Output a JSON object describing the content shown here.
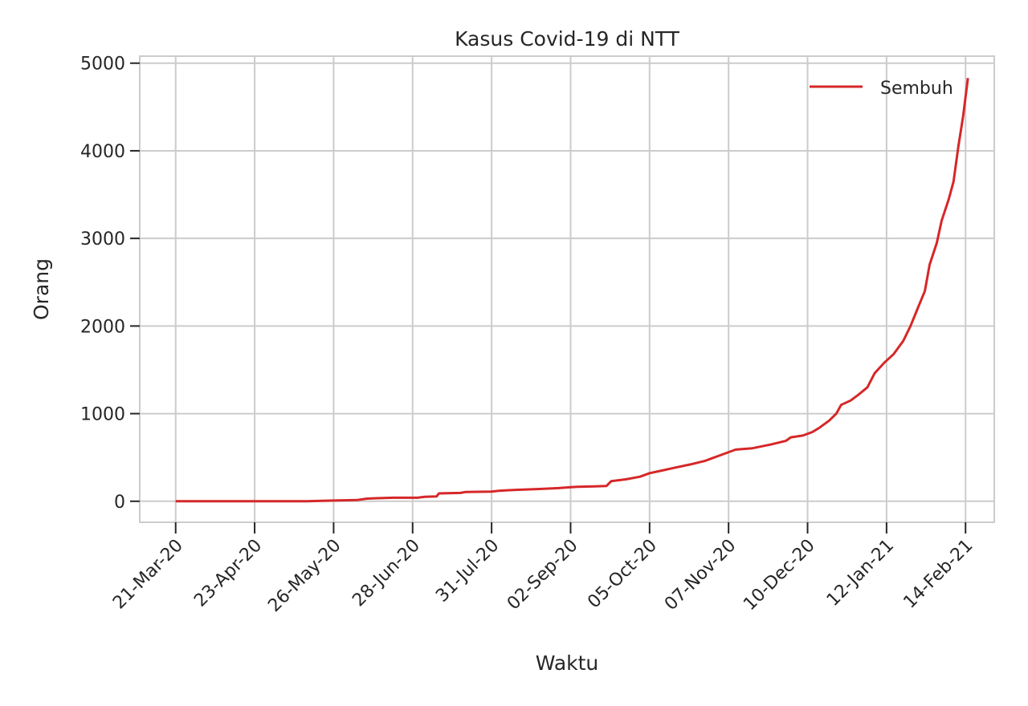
{
  "chart_data": {
    "type": "line",
    "title": "Kasus Covid-19 di NTT",
    "xlabel": "Waktu",
    "ylabel": "Orang",
    "x_type": "date",
    "xlim": [
      "2020-03-06",
      "2021-02-26"
    ],
    "ylim": [
      -240,
      5080
    ],
    "grid": true,
    "legend_position": "top-right",
    "x_ticks": [
      "21-Mar-20",
      "23-Apr-20",
      "26-May-20",
      "28-Jun-20",
      "31-Jul-20",
      "02-Sep-20",
      "05-Oct-20",
      "07-Nov-20",
      "10-Dec-20",
      "12-Jan-21",
      "14-Feb-21"
    ],
    "y_ticks": [
      0,
      1000,
      2000,
      3000,
      4000,
      5000
    ],
    "series": [
      {
        "name": "Sembuh",
        "color": "#d62728",
        "points": [
          [
            "2020-03-21",
            0
          ],
          [
            "2020-04-23",
            0
          ],
          [
            "2020-05-15",
            0
          ],
          [
            "2020-05-21",
            5
          ],
          [
            "2020-05-26",
            8
          ],
          [
            "2020-06-05",
            15
          ],
          [
            "2020-06-09",
            30
          ],
          [
            "2020-06-13",
            35
          ],
          [
            "2020-06-20",
            40
          ],
          [
            "2020-06-30",
            40
          ],
          [
            "2020-07-03",
            50
          ],
          [
            "2020-07-08",
            55
          ],
          [
            "2020-07-09",
            90
          ],
          [
            "2020-07-18",
            95
          ],
          [
            "2020-07-20",
            105
          ],
          [
            "2020-07-31",
            110
          ],
          [
            "2020-08-03",
            120
          ],
          [
            "2020-08-10",
            130
          ],
          [
            "2020-08-20",
            140
          ],
          [
            "2020-08-28",
            150
          ],
          [
            "2020-09-02",
            160
          ],
          [
            "2020-09-05",
            165
          ],
          [
            "2020-09-12",
            170
          ],
          [
            "2020-09-17",
            175
          ],
          [
            "2020-09-19",
            230
          ],
          [
            "2020-09-25",
            250
          ],
          [
            "2020-10-01",
            280
          ],
          [
            "2020-10-05",
            320
          ],
          [
            "2020-10-10",
            350
          ],
          [
            "2020-10-15",
            380
          ],
          [
            "2020-10-22",
            420
          ],
          [
            "2020-10-28",
            460
          ],
          [
            "2020-11-01",
            500
          ],
          [
            "2020-11-07",
            560
          ],
          [
            "2020-11-10",
            590
          ],
          [
            "2020-11-17",
            605
          ],
          [
            "2020-11-25",
            650
          ],
          [
            "2020-12-01",
            690
          ],
          [
            "2020-12-03",
            730
          ],
          [
            "2020-12-08",
            750
          ],
          [
            "2020-12-12",
            790
          ],
          [
            "2020-12-15",
            840
          ],
          [
            "2020-12-19",
            920
          ],
          [
            "2020-12-22",
            1000
          ],
          [
            "2020-12-24",
            1100
          ],
          [
            "2020-12-28",
            1150
          ],
          [
            "2020-12-31",
            1210
          ],
          [
            "2021-01-04",
            1300
          ],
          [
            "2021-01-07",
            1460
          ],
          [
            "2021-01-11",
            1580
          ],
          [
            "2021-01-15",
            1680
          ],
          [
            "2021-01-19",
            1830
          ],
          [
            "2021-01-22",
            2000
          ],
          [
            "2021-01-25",
            2200
          ],
          [
            "2021-01-28",
            2400
          ],
          [
            "2021-01-30",
            2700
          ],
          [
            "2021-02-02",
            2950
          ],
          [
            "2021-02-04",
            3200
          ],
          [
            "2021-02-07",
            3450
          ],
          [
            "2021-02-09",
            3650
          ],
          [
            "2021-02-11",
            4050
          ],
          [
            "2021-02-13",
            4400
          ],
          [
            "2021-02-15",
            4830
          ]
        ]
      }
    ]
  }
}
